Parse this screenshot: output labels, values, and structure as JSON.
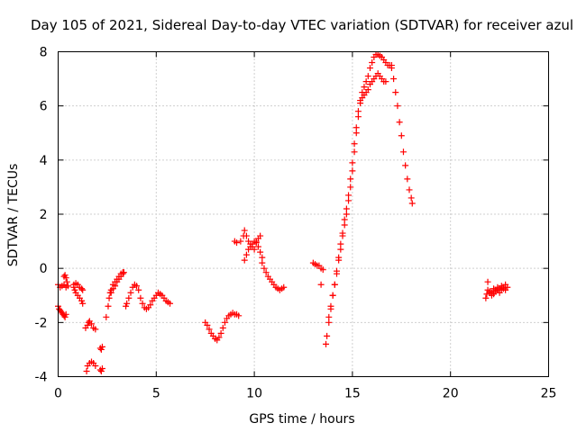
{
  "chart_data": {
    "type": "scatter",
    "title": "Day 105 of 2021, Sidereal Day-to-day VTEC variation (SDTVAR) for receiver azul",
    "xlabel": "GPS time / hours",
    "ylabel": "SDTVAR / TECUs",
    "xlim": [
      0,
      25
    ],
    "ylim": [
      -4,
      8
    ],
    "x_ticks": [
      0,
      5,
      10,
      15,
      20,
      25
    ],
    "y_ticks": [
      -4,
      -2,
      0,
      2,
      4,
      6,
      8
    ],
    "x_tick_labels": [
      "0",
      "5",
      "10",
      "15",
      "20",
      "25"
    ],
    "y_tick_labels": [
      "-4",
      "-2",
      "0",
      "2",
      "4",
      "6",
      "8"
    ],
    "grid": true,
    "marker": "+",
    "color": "#ff0000",
    "series": [
      {
        "name": "seg1",
        "x": [
          0.0,
          0.1,
          0.2,
          0.3,
          0.4,
          0.5
        ],
        "y": [
          -0.6,
          -0.7,
          -0.65,
          -0.6,
          -0.7,
          -0.65
        ]
      },
      {
        "name": "seg2",
        "x": [
          0.3,
          0.35,
          0.4,
          0.45
        ],
        "y": [
          -0.3,
          -0.25,
          -0.35,
          -0.5
        ]
      },
      {
        "name": "seg3",
        "x": [
          0.0,
          0.05,
          0.1,
          0.15,
          0.2,
          0.25,
          0.3,
          0.35,
          0.4
        ],
        "y": [
          -1.4,
          -1.5,
          -1.55,
          -1.6,
          -1.65,
          -1.7,
          -1.75,
          -1.8,
          -1.7
        ]
      },
      {
        "name": "seg4",
        "x": [
          0.8,
          0.85,
          0.9,
          1.0,
          1.1,
          1.2,
          1.25
        ],
        "y": [
          -0.7,
          -0.8,
          -0.9,
          -1.0,
          -1.1,
          -1.2,
          -1.3
        ]
      },
      {
        "name": "seg5",
        "x": [
          0.8,
          0.9,
          1.0,
          1.1,
          1.2,
          1.25
        ],
        "y": [
          -0.6,
          -0.55,
          -0.6,
          -0.7,
          -0.75,
          -0.8
        ]
      },
      {
        "name": "seg6",
        "x": [
          1.4,
          1.5,
          1.55,
          1.6,
          1.7,
          1.8,
          1.9
        ],
        "y": [
          -2.2,
          -2.1,
          -2.0,
          -1.95,
          -2.05,
          -2.2,
          -2.25
        ]
      },
      {
        "name": "seg7",
        "x": [
          1.45,
          1.5,
          1.6,
          1.7,
          1.8,
          1.9
        ],
        "y": [
          -3.8,
          -3.6,
          -3.5,
          -3.45,
          -3.5,
          -3.6
        ]
      },
      {
        "name": "seg8",
        "x": [
          2.15,
          2.2,
          2.25
        ],
        "y": [
          -2.95,
          -3.0,
          -2.9
        ]
      },
      {
        "name": "seg9",
        "x": [
          2.15,
          2.2,
          2.25
        ],
        "y": [
          -3.75,
          -3.8,
          -3.7
        ]
      },
      {
        "name": "seg10",
        "x": [
          2.45,
          2.55,
          2.6,
          2.65,
          2.7,
          2.8,
          2.9,
          3.0,
          3.1,
          3.2,
          3.3,
          3.35
        ],
        "y": [
          -1.8,
          -1.4,
          -1.1,
          -0.9,
          -0.8,
          -0.6,
          -0.5,
          -0.4,
          -0.3,
          -0.2,
          -0.15,
          -0.15
        ]
      },
      {
        "name": "seg11",
        "x": [
          2.7,
          2.8,
          2.9,
          3.0,
          3.1,
          3.2,
          3.3
        ],
        "y": [
          -0.9,
          -0.75,
          -0.65,
          -0.5,
          -0.4,
          -0.3,
          -0.2
        ]
      },
      {
        "name": "seg12",
        "x": [
          3.45,
          3.5,
          3.6,
          3.7,
          3.8,
          3.9,
          4.0,
          4.1,
          4.2,
          4.3,
          4.4,
          4.5,
          4.6,
          4.7,
          4.8,
          4.9,
          5.0,
          5.1,
          5.2,
          5.3,
          5.4,
          5.5,
          5.6,
          5.7
        ],
        "y": [
          -1.4,
          -1.3,
          -1.1,
          -0.9,
          -0.7,
          -0.6,
          -0.65,
          -0.8,
          -1.1,
          -1.3,
          -1.45,
          -1.5,
          -1.45,
          -1.35,
          -1.2,
          -1.1,
          -1.0,
          -0.9,
          -0.95,
          -1.0,
          -1.1,
          -1.2,
          -1.25,
          -1.3
        ]
      },
      {
        "name": "seg13",
        "x": [
          7.5,
          7.6,
          7.7,
          7.8,
          7.9,
          8.0,
          8.1,
          8.2,
          8.3,
          8.4,
          8.5,
          8.6,
          8.7,
          8.8,
          8.9,
          9.0,
          9.1,
          9.2
        ],
        "y": [
          -2.0,
          -2.1,
          -2.25,
          -2.4,
          -2.5,
          -2.6,
          -2.65,
          -2.55,
          -2.4,
          -2.2,
          -2.0,
          -1.85,
          -1.75,
          -1.7,
          -1.65,
          -1.7,
          -1.7,
          -1.75
        ]
      },
      {
        "name": "seg14",
        "x": [
          9.0,
          9.1,
          9.3,
          9.45,
          9.5,
          9.6,
          9.7,
          9.8,
          9.9,
          10.0,
          10.1,
          10.2,
          10.3
        ],
        "y": [
          1.0,
          0.95,
          1.0,
          1.2,
          1.4,
          1.2,
          1.0,
          0.9,
          0.8,
          0.7,
          1.0,
          1.1,
          1.2
        ]
      },
      {
        "name": "seg15",
        "x": [
          9.5,
          9.6,
          9.7,
          9.8,
          9.9,
          10.0,
          10.1,
          10.2,
          10.3,
          10.4
        ],
        "y": [
          0.3,
          0.5,
          0.7,
          0.8,
          0.9,
          1.0,
          0.95,
          0.8,
          0.6,
          0.4
        ]
      },
      {
        "name": "seg16",
        "x": [
          10.4,
          10.5,
          10.6,
          10.7,
          10.8,
          10.9,
          11.0,
          11.1,
          11.2,
          11.3,
          11.4,
          11.5
        ],
        "y": [
          0.2,
          0.0,
          -0.15,
          -0.3,
          -0.4,
          -0.5,
          -0.6,
          -0.7,
          -0.75,
          -0.8,
          -0.75,
          -0.7
        ]
      },
      {
        "name": "seg17",
        "x": [
          13.0,
          13.1,
          13.2,
          13.3,
          13.4,
          13.5
        ],
        "y": [
          0.2,
          0.15,
          0.1,
          0.1,
          0.0,
          -0.05
        ]
      },
      {
        "name": "seg18",
        "x": [
          13.4
        ],
        "y": [
          -0.6
        ]
      },
      {
        "name": "seg19",
        "x": [
          13.65,
          13.7,
          13.8,
          13.9,
          14.0,
          14.1,
          14.2,
          14.3,
          14.4,
          14.5,
          14.6,
          14.7,
          14.8,
          14.9,
          15.0,
          15.1,
          15.2,
          15.3,
          15.4,
          15.5,
          15.6,
          15.7,
          15.8,
          15.9,
          16.0,
          16.1,
          16.2,
          16.3,
          16.4,
          16.5,
          16.6,
          16.7,
          16.8,
          16.9,
          17.0
        ],
        "y": [
          -2.8,
          -2.5,
          -2.0,
          -1.5,
          -1.0,
          -0.6,
          -0.2,
          0.3,
          0.7,
          1.2,
          1.6,
          2.0,
          2.5,
          3.0,
          3.6,
          4.3,
          5.0,
          5.6,
          6.2,
          6.5,
          6.7,
          6.9,
          7.1,
          7.4,
          7.6,
          7.8,
          7.9,
          7.9,
          7.85,
          7.8,
          7.7,
          7.6,
          7.5,
          7.5,
          7.5
        ]
      },
      {
        "name": "seg20",
        "x": [
          13.8,
          13.9,
          14.0,
          14.1,
          14.2,
          14.3,
          14.4,
          14.5,
          14.6,
          14.7,
          14.8,
          14.9,
          15.0,
          15.1,
          15.2,
          15.3,
          15.4,
          15.5,
          15.6,
          15.7,
          15.8,
          15.9,
          16.0,
          16.1,
          16.2,
          16.3,
          16.4,
          16.5,
          16.6,
          16.7
        ],
        "y": [
          -1.8,
          -1.4,
          -1.0,
          -0.6,
          -0.1,
          0.4,
          0.9,
          1.3,
          1.8,
          2.2,
          2.7,
          3.3,
          3.9,
          4.6,
          5.2,
          5.8,
          6.1,
          6.3,
          6.4,
          6.5,
          6.6,
          6.8,
          6.9,
          7.0,
          7.1,
          7.2,
          7.1,
          7.0,
          6.9,
          6.9
        ]
      },
      {
        "name": "seg21",
        "x": [
          17.0,
          17.1,
          17.2,
          17.3,
          17.4,
          17.5,
          17.6,
          17.7,
          17.8,
          17.9,
          18.0,
          18.05
        ],
        "y": [
          7.4,
          7.0,
          6.5,
          6.0,
          5.4,
          4.9,
          4.3,
          3.8,
          3.3,
          2.9,
          2.6,
          2.4
        ]
      },
      {
        "name": "seg22",
        "x": [
          21.8,
          21.85,
          21.9,
          22.0,
          22.1,
          22.2,
          22.3,
          22.4,
          22.5,
          22.6,
          22.7,
          22.8,
          22.9
        ],
        "y": [
          -1.1,
          -0.95,
          -0.8,
          -0.85,
          -0.9,
          -0.75,
          -0.8,
          -0.7,
          -0.75,
          -0.65,
          -0.7,
          -0.6,
          -0.7
        ]
      },
      {
        "name": "seg23",
        "x": [
          21.9,
          22.0,
          22.1,
          22.2,
          22.3,
          22.4,
          22.5,
          22.6,
          22.7,
          22.8
        ],
        "y": [
          -0.5,
          -0.9,
          -1.0,
          -0.95,
          -0.85,
          -0.8,
          -0.9,
          -0.8,
          -0.75,
          -0.8
        ]
      }
    ]
  }
}
